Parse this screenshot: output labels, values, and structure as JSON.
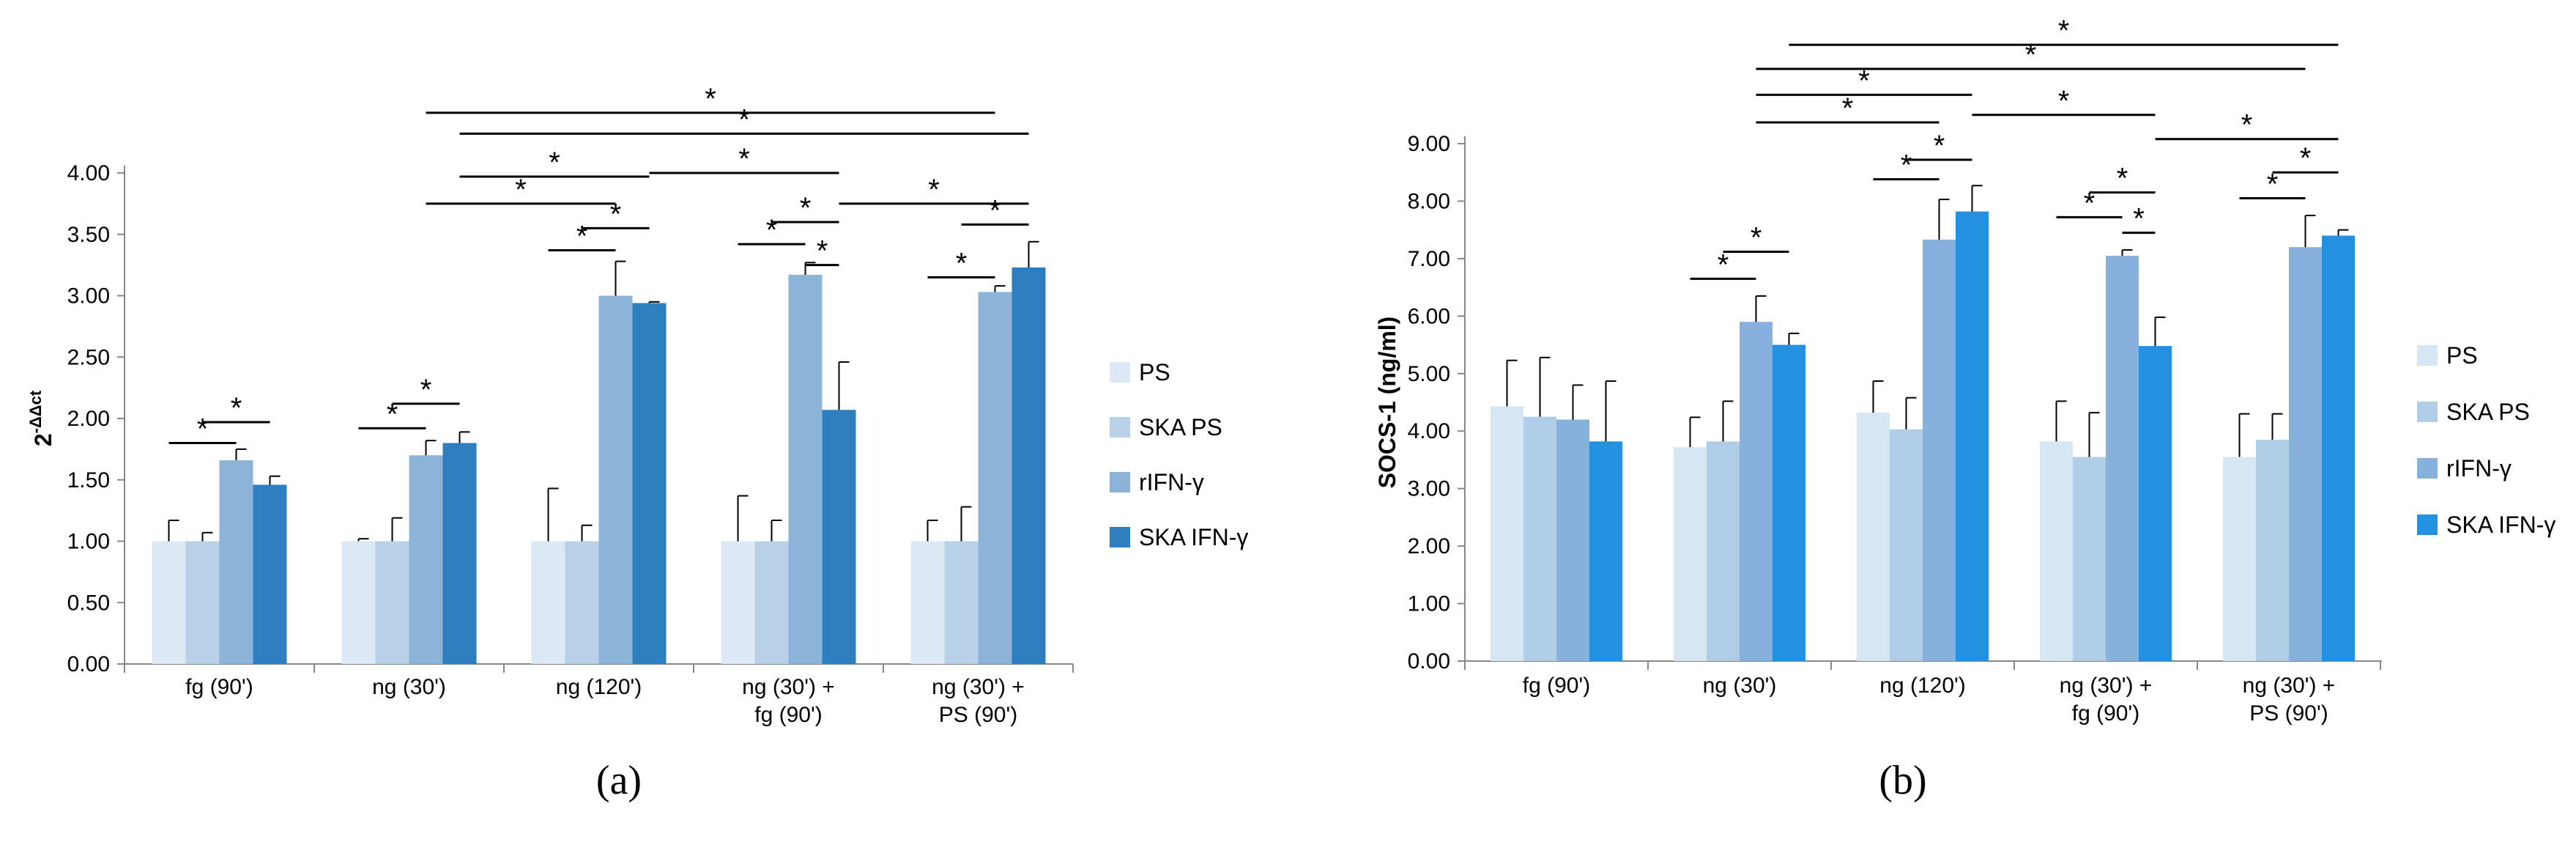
{
  "chart_data": [
    {
      "type": "bar",
      "panel_label": "(a)",
      "ylabel": "2",
      "ylabel_sup": "-ΔΔct",
      "ylim": [
        0,
        4
      ],
      "yticks": [
        "0.00",
        "0.50",
        "1.00",
        "1.50",
        "2.00",
        "2.50",
        "3.00",
        "3.50",
        "4.00"
      ],
      "categories": [
        [
          "fg (90')"
        ],
        [
          "ng (30')"
        ],
        [
          "ng (120')"
        ],
        [
          "ng (30') +",
          "fg (90')"
        ],
        [
          "ng (30') +",
          "PS (90')"
        ]
      ],
      "series": [
        {
          "name": "PS",
          "color": "#dce8f3",
          "values": [
            1.0,
            1.0,
            1.0,
            1.0,
            1.0
          ],
          "err": [
            0.17,
            0.02,
            0.43,
            0.37,
            0.17
          ]
        },
        {
          "name": "SKA PS",
          "color": "#b8d1e8",
          "values": [
            1.0,
            1.0,
            1.0,
            1.0,
            1.0
          ],
          "err": [
            0.07,
            0.19,
            0.13,
            0.17,
            0.28
          ]
        },
        {
          "name": "rIFN-γ",
          "color": "#8db3d8",
          "values": [
            1.66,
            1.7,
            3.0,
            3.17,
            3.03
          ],
          "err": [
            0.09,
            0.12,
            0.28,
            0.1,
            0.05
          ]
        },
        {
          "name": "SKA IFN-γ",
          "color": "#2e7fc0",
          "values": [
            1.46,
            1.8,
            2.94,
            2.07,
            3.23
          ],
          "err": [
            0.07,
            0.09,
            0.01,
            0.39,
            0.21
          ]
        }
      ],
      "significance": [
        {
          "from": [
            0,
            0
          ],
          "to": [
            0,
            2
          ],
          "y": 1.8,
          "label": "*"
        },
        {
          "from": [
            0,
            1
          ],
          "to": [
            0,
            3
          ],
          "y": 1.97,
          "label": "*"
        },
        {
          "from": [
            1,
            0
          ],
          "to": [
            1,
            2
          ],
          "y": 1.92,
          "label": "*"
        },
        {
          "from": [
            1,
            1
          ],
          "to": [
            1,
            3
          ],
          "y": 2.12,
          "label": "*"
        },
        {
          "from": [
            2,
            0
          ],
          "to": [
            2,
            2
          ],
          "y": 3.37,
          "label": "*"
        },
        {
          "from": [
            2,
            1
          ],
          "to": [
            2,
            3
          ],
          "y": 3.55,
          "label": "*"
        },
        {
          "from": [
            3,
            0
          ],
          "to": [
            3,
            2
          ],
          "y": 3.42,
          "label": "*"
        },
        {
          "from": [
            3,
            1
          ],
          "to": [
            3,
            3
          ],
          "y": 3.6,
          "label": "*"
        },
        {
          "from": [
            3,
            2
          ],
          "to": [
            3,
            3
          ],
          "y": 3.25,
          "label": "*"
        },
        {
          "from": [
            4,
            0
          ],
          "to": [
            4,
            2
          ],
          "y": 3.15,
          "label": "*"
        },
        {
          "from": [
            4,
            1
          ],
          "to": [
            4,
            3
          ],
          "y": 3.58,
          "label": "*"
        },
        {
          "from": [
            1,
            2
          ],
          "to": [
            2,
            2
          ],
          "y": 3.75,
          "label": "*"
        },
        {
          "from": [
            1,
            3
          ],
          "to": [
            2,
            3
          ],
          "y": 3.97,
          "label": "*"
        },
        {
          "from": [
            2,
            3
          ],
          "to": [
            3,
            3
          ],
          "y": 4.0,
          "label": "*"
        },
        {
          "from": [
            3,
            3
          ],
          "to": [
            4,
            3
          ],
          "y": 3.75,
          "label": "*"
        },
        {
          "from": [
            1,
            3
          ],
          "to": [
            4,
            3
          ],
          "y": 4.32,
          "label": "*"
        },
        {
          "from": [
            1,
            2
          ],
          "to": [
            4,
            2
          ],
          "y": 4.49,
          "label": "*"
        }
      ]
    },
    {
      "type": "bar",
      "panel_label": "(b)",
      "ylabel": "SOCS-1 (ng/ml)",
      "ylim": [
        0,
        9
      ],
      "yticks": [
        "0.00",
        "1.00",
        "2.00",
        "3.00",
        "4.00",
        "5.00",
        "6.00",
        "7.00",
        "8.00",
        "9.00"
      ],
      "categories": [
        [
          "fg (90')"
        ],
        [
          "ng (30')"
        ],
        [
          "ng (120')"
        ],
        [
          "ng (30') +",
          "fg (90')"
        ],
        [
          "ng (30') +",
          "PS (90')"
        ]
      ],
      "series": [
        {
          "name": "PS",
          "color": "#d6e6f3",
          "values": [
            4.43,
            3.72,
            4.32,
            3.82,
            3.55
          ],
          "err": [
            0.8,
            0.52,
            0.55,
            0.7,
            0.75
          ]
        },
        {
          "name": "SKA PS",
          "color": "#b0cde8",
          "values": [
            4.25,
            3.82,
            4.03,
            3.55,
            3.85
          ],
          "err": [
            1.03,
            0.7,
            0.55,
            0.77,
            0.45
          ]
        },
        {
          "name": "rIFN-γ",
          "color": "#86b1dc",
          "values": [
            4.2,
            5.9,
            7.33,
            7.05,
            7.2
          ],
          "err": [
            0.6,
            0.45,
            0.7,
            0.1,
            0.55
          ]
        },
        {
          "name": "SKA IFN-γ",
          "color": "#2390e0",
          "values": [
            3.82,
            5.5,
            7.82,
            5.48,
            7.4
          ],
          "err": [
            1.05,
            0.2,
            0.45,
            0.5,
            0.1
          ]
        }
      ],
      "significance": [
        {
          "from": [
            1,
            0
          ],
          "to": [
            1,
            2
          ],
          "y": 6.65,
          "label": "*"
        },
        {
          "from": [
            1,
            1
          ],
          "to": [
            1,
            3
          ],
          "y": 7.12,
          "label": "*"
        },
        {
          "from": [
            2,
            0
          ],
          "to": [
            2,
            2
          ],
          "y": 8.38,
          "label": "*"
        },
        {
          "from": [
            2,
            1
          ],
          "to": [
            2,
            3
          ],
          "y": 8.72,
          "label": "*"
        },
        {
          "from": [
            3,
            0
          ],
          "to": [
            3,
            2
          ],
          "y": 7.72,
          "label": "*"
        },
        {
          "from": [
            3,
            1
          ],
          "to": [
            3,
            3
          ],
          "y": 8.15,
          "label": "*"
        },
        {
          "from": [
            3,
            2
          ],
          "to": [
            3,
            3
          ],
          "y": 7.45,
          "label": "*"
        },
        {
          "from": [
            4,
            0
          ],
          "to": [
            4,
            2
          ],
          "y": 8.05,
          "label": "*"
        },
        {
          "from": [
            4,
            1
          ],
          "to": [
            4,
            3
          ],
          "y": 8.5,
          "label": "*"
        },
        {
          "from": [
            1,
            2
          ],
          "to": [
            2,
            2
          ],
          "y": 9.37,
          "label": "*"
        },
        {
          "from": [
            1,
            2
          ],
          "to": [
            2,
            3
          ],
          "y": 9.85,
          "label": "*"
        },
        {
          "from": [
            2,
            3
          ],
          "to": [
            3,
            3
          ],
          "y": 9.5,
          "label": "*"
        },
        {
          "from": [
            3,
            3
          ],
          "to": [
            4,
            3
          ],
          "y": 9.08,
          "label": "*"
        },
        {
          "from": [
            1,
            2
          ],
          "to": [
            4,
            2
          ],
          "y": 10.3,
          "label": "*"
        },
        {
          "from": [
            1,
            3
          ],
          "to": [
            4,
            3
          ],
          "y": 10.72,
          "label": "*"
        }
      ]
    }
  ]
}
